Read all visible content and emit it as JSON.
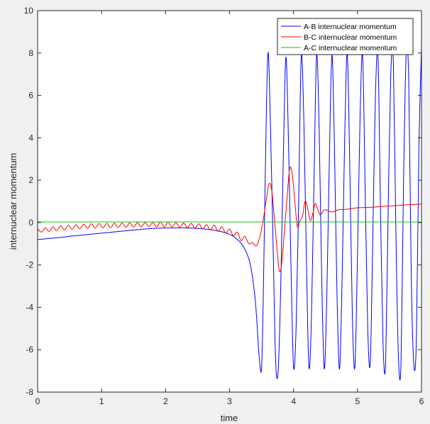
{
  "chart_data": {
    "type": "line",
    "xlabel": "time",
    "ylabel": "internuclear momentum",
    "xlim": [
      0,
      6
    ],
    "ylim": [
      -8,
      10
    ],
    "x_ticks": [
      0,
      1,
      2,
      3,
      4,
      5,
      6
    ],
    "y_ticks": [
      -8,
      -6,
      -4,
      -2,
      0,
      2,
      4,
      6,
      8,
      10
    ],
    "grid": false,
    "legend_position": "top-right",
    "series": [
      {
        "name": "A-B internuclear momentum",
        "color": "#0000ff",
        "x": [
          0,
          0.3,
          0.6,
          1.0,
          1.4,
          1.8,
          2.1,
          2.3,
          2.6,
          2.8,
          3.0,
          3.1,
          3.2,
          3.3,
          3.35,
          3.4,
          3.43,
          3.46,
          3.5,
          3.53,
          3.56,
          3.6,
          3.64,
          3.68,
          3.72,
          3.76,
          3.8,
          3.84,
          3.88,
          3.92,
          3.96,
          4.0,
          4.04,
          4.08,
          4.12,
          4.16,
          4.2,
          4.24,
          4.28,
          4.32,
          4.36,
          4.4,
          4.44,
          4.48,
          4.52,
          4.56,
          4.6,
          4.64,
          4.68,
          4.72,
          4.76,
          4.8,
          4.84,
          4.88,
          4.92,
          4.96,
          5.0,
          5.04,
          5.08,
          5.12,
          5.16,
          5.2,
          5.24,
          5.28,
          5.32,
          5.36,
          5.4,
          5.44,
          5.48,
          5.52,
          5.56,
          5.6,
          5.64,
          5.68,
          5.72,
          5.76,
          5.8,
          5.84,
          5.88,
          5.92,
          5.96,
          6.0
        ],
        "y": [
          -0.8,
          -0.72,
          -0.62,
          -0.5,
          -0.38,
          -0.28,
          -0.25,
          -0.25,
          -0.3,
          -0.38,
          -0.55,
          -0.75,
          -1.05,
          -1.7,
          -2.4,
          -3.6,
          -4.8,
          -6.2,
          -6.9,
          -3.0,
          2.5,
          8.0,
          4.5,
          -1.0,
          -6.5,
          -7.0,
          -3.0,
          3.0,
          7.8,
          4.0,
          -2.0,
          -6.8,
          -5.0,
          1.0,
          7.8,
          5.0,
          -1.5,
          -6.8,
          -4.5,
          2.0,
          7.9,
          4.5,
          -2.5,
          -6.9,
          -3.5,
          3.0,
          7.9,
          3.5,
          -3.5,
          -6.9,
          -2.5,
          4.0,
          8.0,
          2.5,
          -4.5,
          -6.8,
          -1.5,
          5.0,
          7.9,
          1.5,
          -5.0,
          -6.6,
          -0.5,
          6.0,
          7.8,
          0.5,
          -5.8,
          -6.6,
          0.8,
          7.0,
          7.6,
          -0.5,
          -6.4,
          -6.6,
          2.0,
          7.9,
          6.8,
          -2.5,
          -6.7,
          -5.5,
          3.5,
          8.3
        ]
      },
      {
        "name": "B-C internuclear momentum",
        "color": "#ff0000",
        "x": [
          0,
          0.06,
          0.12,
          0.18,
          0.24,
          0.3,
          0.36,
          0.42,
          0.48,
          0.54,
          0.6,
          0.66,
          0.72,
          0.78,
          0.84,
          0.9,
          0.96,
          1.02,
          1.08,
          1.14,
          1.2,
          1.26,
          1.32,
          1.38,
          1.44,
          1.5,
          1.56,
          1.62,
          1.68,
          1.74,
          1.8,
          1.86,
          1.92,
          1.98,
          2.04,
          2.1,
          2.16,
          2.22,
          2.28,
          2.34,
          2.4,
          2.46,
          2.52,
          2.58,
          2.64,
          2.7,
          2.76,
          2.82,
          2.88,
          2.94,
          3.0,
          3.06,
          3.12,
          3.18,
          3.24,
          3.3,
          3.36,
          3.42,
          3.48,
          3.53,
          3.58,
          3.62,
          3.66,
          3.7,
          3.74,
          3.78,
          3.82,
          3.86,
          3.9,
          3.94,
          3.98,
          4.02,
          4.06,
          4.1,
          4.14,
          4.18,
          4.22,
          4.26,
          4.3,
          4.34,
          4.38,
          4.42,
          4.46,
          4.5,
          4.6,
          4.7,
          4.8,
          4.9,
          5.0,
          5.2,
          5.4,
          5.6,
          5.8,
          6.0
        ],
        "y": [
          -0.3,
          -0.45,
          -0.25,
          -0.42,
          -0.2,
          -0.38,
          -0.15,
          -0.35,
          -0.12,
          -0.33,
          -0.1,
          -0.3,
          -0.08,
          -0.28,
          -0.06,
          -0.26,
          -0.05,
          -0.25,
          -0.04,
          -0.24,
          -0.03,
          -0.23,
          -0.02,
          -0.22,
          -0.01,
          -0.22,
          0.0,
          -0.21,
          0.0,
          -0.2,
          0.0,
          -0.2,
          0.02,
          -0.2,
          0.02,
          -0.2,
          0.0,
          -0.22,
          -0.02,
          -0.24,
          -0.04,
          -0.26,
          -0.06,
          -0.3,
          -0.1,
          -0.35,
          -0.12,
          -0.42,
          -0.2,
          -0.5,
          -0.3,
          -0.62,
          -0.45,
          -0.85,
          -0.65,
          -1.0,
          -0.95,
          -1.1,
          -0.6,
          0.2,
          1.2,
          1.85,
          1.5,
          0.2,
          -1.2,
          -2.3,
          -1.8,
          -0.3,
          1.2,
          2.55,
          2.3,
          1.0,
          -0.2,
          0.1,
          0.3,
          1.0,
          0.7,
          0.1,
          0.4,
          0.9,
          0.6,
          0.35,
          0.55,
          0.6,
          0.5,
          0.6,
          0.62,
          0.65,
          0.7,
          0.72,
          0.76,
          0.8,
          0.84,
          0.87
        ]
      },
      {
        "name": "A-C internuclear momentum",
        "color": "#00cc00",
        "x": [
          0,
          6
        ],
        "y": [
          0.03,
          0.03
        ]
      }
    ]
  }
}
